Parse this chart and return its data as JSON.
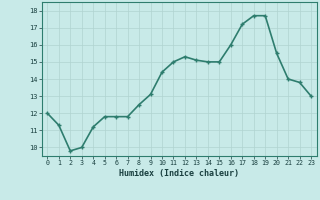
{
  "x": [
    0,
    1,
    2,
    3,
    4,
    5,
    6,
    7,
    8,
    9,
    10,
    11,
    12,
    13,
    14,
    15,
    16,
    17,
    18,
    19,
    20,
    21,
    22,
    23
  ],
  "y": [
    12,
    11.3,
    9.8,
    10.0,
    11.2,
    11.8,
    11.8,
    11.8,
    12.5,
    13.1,
    14.4,
    15.0,
    15.3,
    15.1,
    15.0,
    15.0,
    16.0,
    17.2,
    17.7,
    17.7,
    15.5,
    14.0,
    13.8,
    13.0
  ],
  "xlabel": "Humidex (Indice chaleur)",
  "xlim": [
    -0.5,
    23.5
  ],
  "ylim": [
    9.5,
    18.5
  ],
  "yticks": [
    10,
    11,
    12,
    13,
    14,
    15,
    16,
    17,
    18
  ],
  "xticks": [
    0,
    1,
    2,
    3,
    4,
    5,
    6,
    7,
    8,
    9,
    10,
    11,
    12,
    13,
    14,
    15,
    16,
    17,
    18,
    19,
    20,
    21,
    22,
    23
  ],
  "line_color": "#2e7d6e",
  "bg_color": "#c8eae8",
  "grid_color": "#b0d4d0",
  "tick_label_color": "#1a4040",
  "xlabel_color": "#1a4040",
  "linewidth": 1.2,
  "markersize": 3.5
}
